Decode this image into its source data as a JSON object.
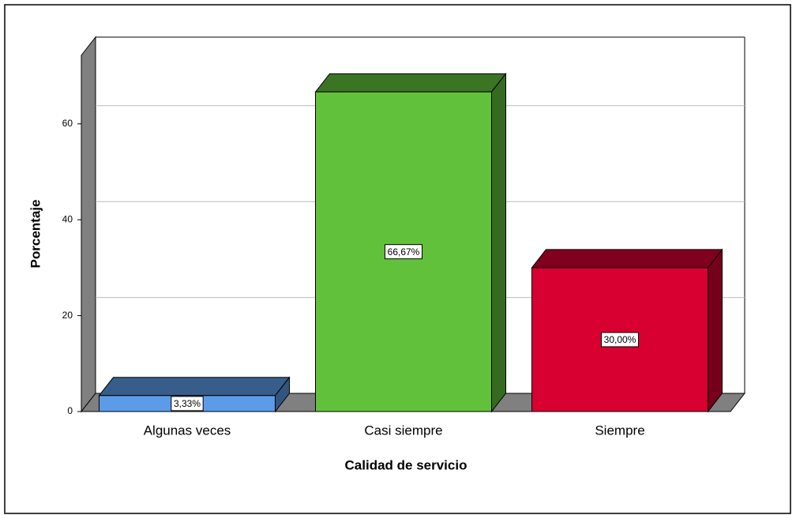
{
  "chart_data": {
    "type": "bar3d",
    "x_label": "Calidad de servicio",
    "y_label": "Porcentaje",
    "categories": [
      "Algunas veces",
      "Casi siempre",
      "Siempre"
    ],
    "values": [
      3.33,
      66.67,
      30.0
    ],
    "value_labels": [
      "3,33%",
      "66,67%",
      "30,00%"
    ],
    "colors": [
      "#5b9be8",
      "#62c13a",
      "#d70030"
    ],
    "ylim": [
      0,
      74.3
    ],
    "yticks": [
      0,
      20,
      40,
      60
    ],
    "grid": true
  }
}
